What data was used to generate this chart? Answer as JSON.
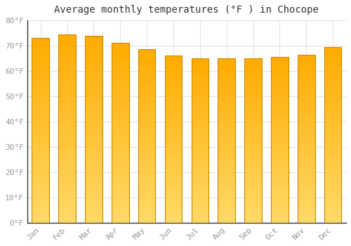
{
  "title": "Average monthly temperatures (°F ) in Chocope",
  "months": [
    "Jan",
    "Feb",
    "Mar",
    "Apr",
    "May",
    "Jun",
    "Jul",
    "Aug",
    "Sep",
    "Oct",
    "Nov",
    "Dec"
  ],
  "values": [
    73,
    74.5,
    74,
    71,
    68.5,
    66,
    65,
    65,
    65,
    65.5,
    66.5,
    69.5
  ],
  "ylim": [
    0,
    80
  ],
  "ytick_step": 10,
  "bar_color_top": "#FFAA00",
  "bar_color_bottom": "#FFD966",
  "bar_edge_color": "#CC8800",
  "background_color": "#FFFFFF",
  "plot_bg_color": "#FFFFFF",
  "grid_color": "#E0E0E0",
  "title_fontsize": 10,
  "tick_fontsize": 8,
  "tick_color": "#999999",
  "title_color": "#333333"
}
